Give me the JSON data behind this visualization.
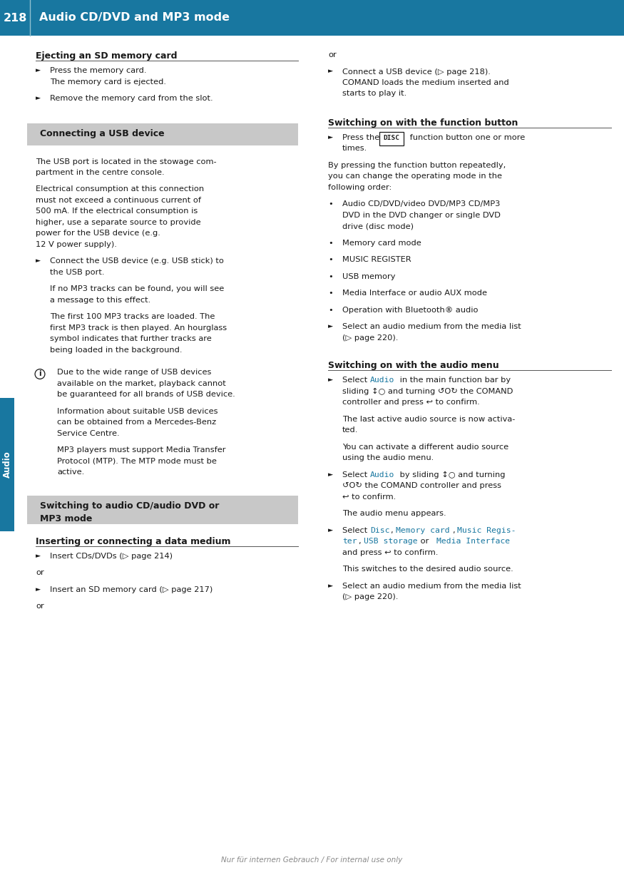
{
  "page_width": 8.75,
  "page_height": 12.41,
  "dpi": 100,
  "bg_color": "#ffffff",
  "header_bg": "#1877a0",
  "header_text_color": "#ffffff",
  "header_page_num": "218",
  "header_title": "Audio CD/DVD and MP3 mode",
  "sidebar_color": "#1877a0",
  "sidebar_text": "Audio",
  "footer_text": "Nur für internen Gebrauch / For internal use only",
  "gray_box_color": "#c8c8c8",
  "text_color": "#1a1a1a",
  "blue_text_color": "#1877a0",
  "section_line_color": "#555555",
  "font_size_body": 8.2,
  "font_size_heading": 9.0,
  "font_size_header": 11.5,
  "font_size_footer": 7.5
}
